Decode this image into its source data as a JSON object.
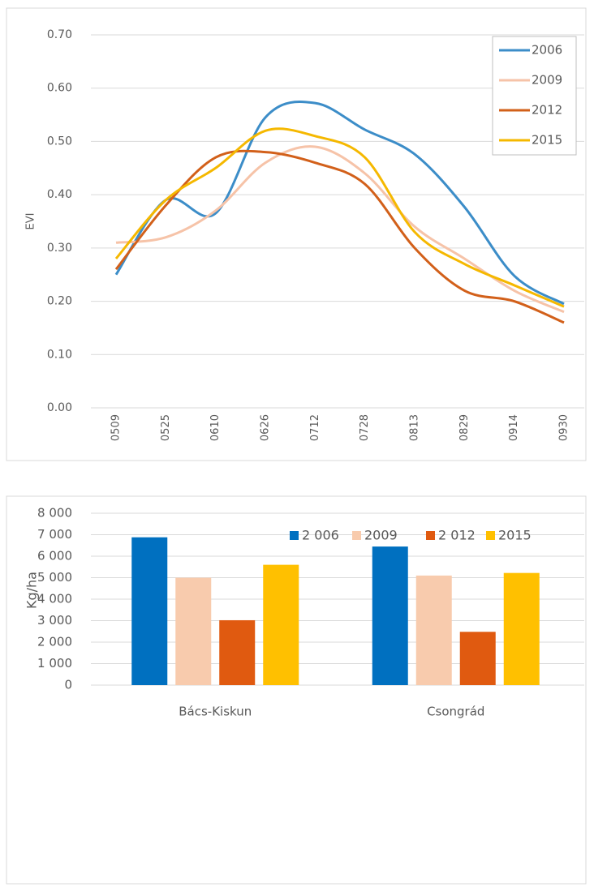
{
  "chart_data": [
    {
      "type": "line",
      "y_label": "EVI",
      "categories": [
        "0509",
        "0525",
        "0610",
        "0626",
        "0712",
        "0728",
        "0813",
        "0829",
        "0914",
        "0930"
      ],
      "series": [
        {
          "name": "2006",
          "color": "#3c8dc8",
          "values": [
            0.25,
            0.39,
            0.365,
            0.545,
            0.572,
            0.522,
            0.476,
            0.377,
            0.248,
            0.195
          ]
        },
        {
          "name": "2009",
          "color": "#f6c3a8",
          "values": [
            0.31,
            0.32,
            0.37,
            0.46,
            0.49,
            0.44,
            0.34,
            0.28,
            0.22,
            0.18
          ]
        },
        {
          "name": "2012",
          "color": "#d2601a",
          "values": [
            0.26,
            0.38,
            0.47,
            0.48,
            0.46,
            0.42,
            0.3,
            0.22,
            0.2,
            0.16
          ]
        },
        {
          "name": "2015",
          "color": "#f5b800",
          "values": [
            0.28,
            0.39,
            0.45,
            0.52,
            0.51,
            0.47,
            0.33,
            0.27,
            0.23,
            0.19
          ]
        }
      ],
      "ylim": [
        0,
        0.7
      ],
      "yticks": [
        {
          "value": 0,
          "label": "0.00"
        },
        {
          "value": 0.1,
          "label": "0.10"
        },
        {
          "value": 0.2,
          "label": "0.20"
        },
        {
          "value": 0.3,
          "label": "0.30"
        },
        {
          "value": 0.4,
          "label": "0.40"
        },
        {
          "value": 0.5,
          "label": "0.50"
        },
        {
          "value": 0.6,
          "label": "0.60"
        },
        {
          "value": 0.7,
          "label": "0.70"
        }
      ],
      "grid": true,
      "legend": "top-right"
    },
    {
      "type": "bar",
      "y_label": "Kg/ha",
      "categories": [
        "Bács-Kiskun",
        "Csongrád"
      ],
      "series": [
        {
          "name": "2 006",
          "color": "#0070c0",
          "values": [
            6880,
            6450
          ]
        },
        {
          "name": "2009",
          "color": "#f8cbad",
          "values": [
            5000,
            5100
          ]
        },
        {
          "name": "2 012",
          "color": "#e05a10",
          "values": [
            3020,
            2480
          ]
        },
        {
          "name": "2015",
          "color": "#ffc000",
          "values": [
            5600,
            5220
          ]
        }
      ],
      "ylim": [
        0,
        8000
      ],
      "yticks": [
        {
          "value": 0,
          "label": "0"
        },
        {
          "value": 1000,
          "label": "1 000"
        },
        {
          "value": 2000,
          "label": "2 000"
        },
        {
          "value": 3000,
          "label": "3 000"
        },
        {
          "value": 4000,
          "label": "4 000"
        },
        {
          "value": 5000,
          "label": "5 000"
        },
        {
          "value": 6000,
          "label": "6 000"
        },
        {
          "value": 7000,
          "label": "7 000"
        },
        {
          "value": 8000,
          "label": "8 000"
        }
      ],
      "grid": true,
      "legend": "top"
    }
  ]
}
